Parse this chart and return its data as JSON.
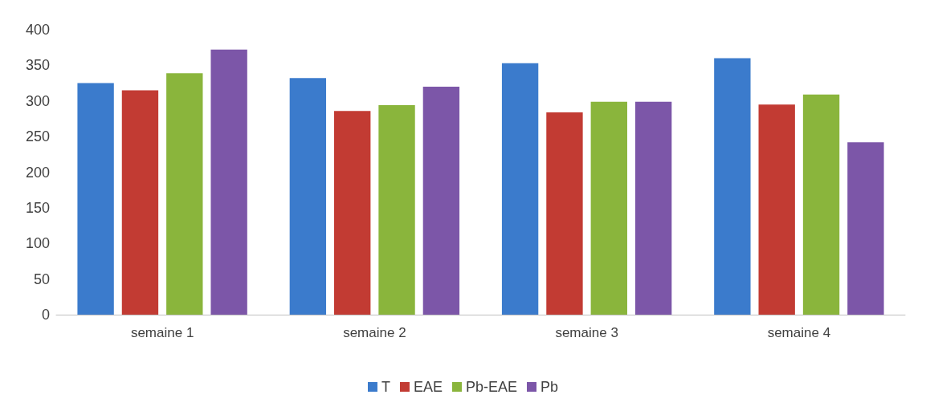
{
  "chart_data": {
    "type": "bar",
    "categories": [
      "semaine 1",
      "semaine 2",
      "semaine 3",
      "semaine 4"
    ],
    "series": [
      {
        "name": "T",
        "color": "#3b7bcc",
        "values": [
          325,
          332,
          353,
          360
        ]
      },
      {
        "name": "EAE",
        "color": "#c23b33",
        "values": [
          315,
          286,
          284,
          295
        ]
      },
      {
        "name": "Pb-EAE",
        "color": "#8ab53c",
        "values": [
          339,
          294,
          299,
          309
        ]
      },
      {
        "name": "Pb",
        "color": "#7c56a8",
        "values": [
          372,
          320,
          299,
          242
        ]
      }
    ],
    "ylim": [
      0,
      400
    ],
    "yticks": [
      0,
      50,
      100,
      150,
      200,
      250,
      300,
      350,
      400
    ],
    "legend": "bottom"
  }
}
